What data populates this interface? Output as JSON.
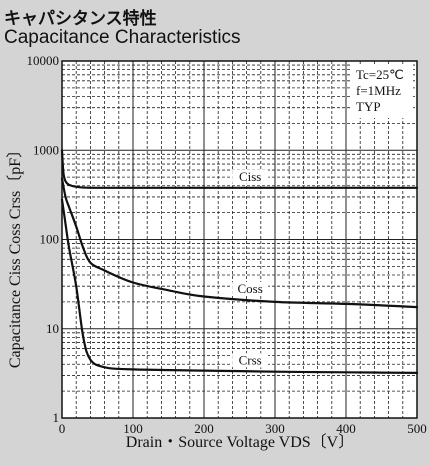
{
  "header": {
    "title_jp": "キャパシタンス特性",
    "title_en": "Capacitance Characteristics"
  },
  "chart_data": {
    "type": "line",
    "xlabel": "Drain・Source Voltage VDS〔V〕",
    "ylabel": "Capacitance  Ciss Coss Crss〔pF〕",
    "xlim": [
      0,
      500
    ],
    "ylim": [
      1,
      10000
    ],
    "yscale": "log",
    "grid": true,
    "x_ticks": [
      0,
      100,
      200,
      300,
      400,
      500
    ],
    "x_tick_labels": [
      "0",
      "100",
      "200",
      "300",
      "400",
      "500"
    ],
    "y_ticks": [
      1,
      10,
      100,
      1000,
      10000
    ],
    "y_tick_labels": [
      "1",
      "10",
      "100",
      "1000",
      "10000"
    ],
    "conditions": [
      "Tc=25℃",
      "f=1MHz",
      "TYP"
    ],
    "series": [
      {
        "name": "Ciss",
        "x": [
          0,
          2,
          5,
          10,
          20,
          40,
          100,
          200,
          300,
          400,
          500
        ],
        "y": [
          1000,
          560,
          450,
          410,
          390,
          380,
          380,
          380,
          380,
          380,
          380
        ]
      },
      {
        "name": "Coss",
        "x": [
          0,
          5,
          10,
          20,
          30,
          40,
          60,
          100,
          150,
          200,
          300,
          400,
          500
        ],
        "y": [
          480,
          300,
          230,
          140,
          80,
          55,
          45,
          33,
          27,
          23,
          20,
          19,
          17.5
        ]
      },
      {
        "name": "Crss",
        "x": [
          0,
          5,
          10,
          20,
          30,
          40,
          60,
          100,
          200,
          300,
          400,
          500
        ],
        "y": [
          280,
          150,
          80,
          30,
          8,
          4.5,
          3.7,
          3.5,
          3.4,
          3.3,
          3.25,
          3.2
        ]
      }
    ]
  }
}
